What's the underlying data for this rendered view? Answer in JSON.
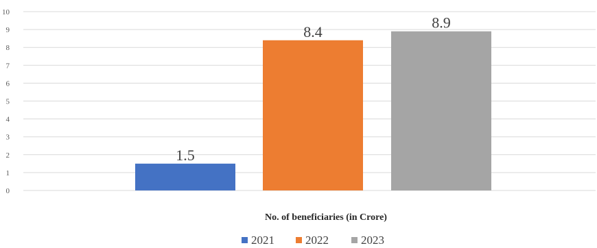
{
  "chart_data": {
    "type": "bar",
    "categories": [
      ""
    ],
    "series": [
      {
        "name": "2021",
        "values": [
          1.5
        ],
        "color": "#4472c4"
      },
      {
        "name": "2022",
        "values": [
          8.4
        ],
        "color": "#ed7d31"
      },
      {
        "name": "2023",
        "values": [
          8.9
        ],
        "color": "#a5a5a5"
      }
    ],
    "xlabel": "No. of beneficiaries (in Crore)",
    "ylabel": "",
    "ylim": [
      0,
      10
    ],
    "yticks": [
      "0",
      "1",
      "2",
      "3",
      "4",
      "5",
      "6",
      "7",
      "8",
      "9",
      "10"
    ],
    "data_labels": [
      "1.5",
      "8.4",
      "8.9"
    ],
    "grid": true,
    "legend_position": "bottom"
  }
}
